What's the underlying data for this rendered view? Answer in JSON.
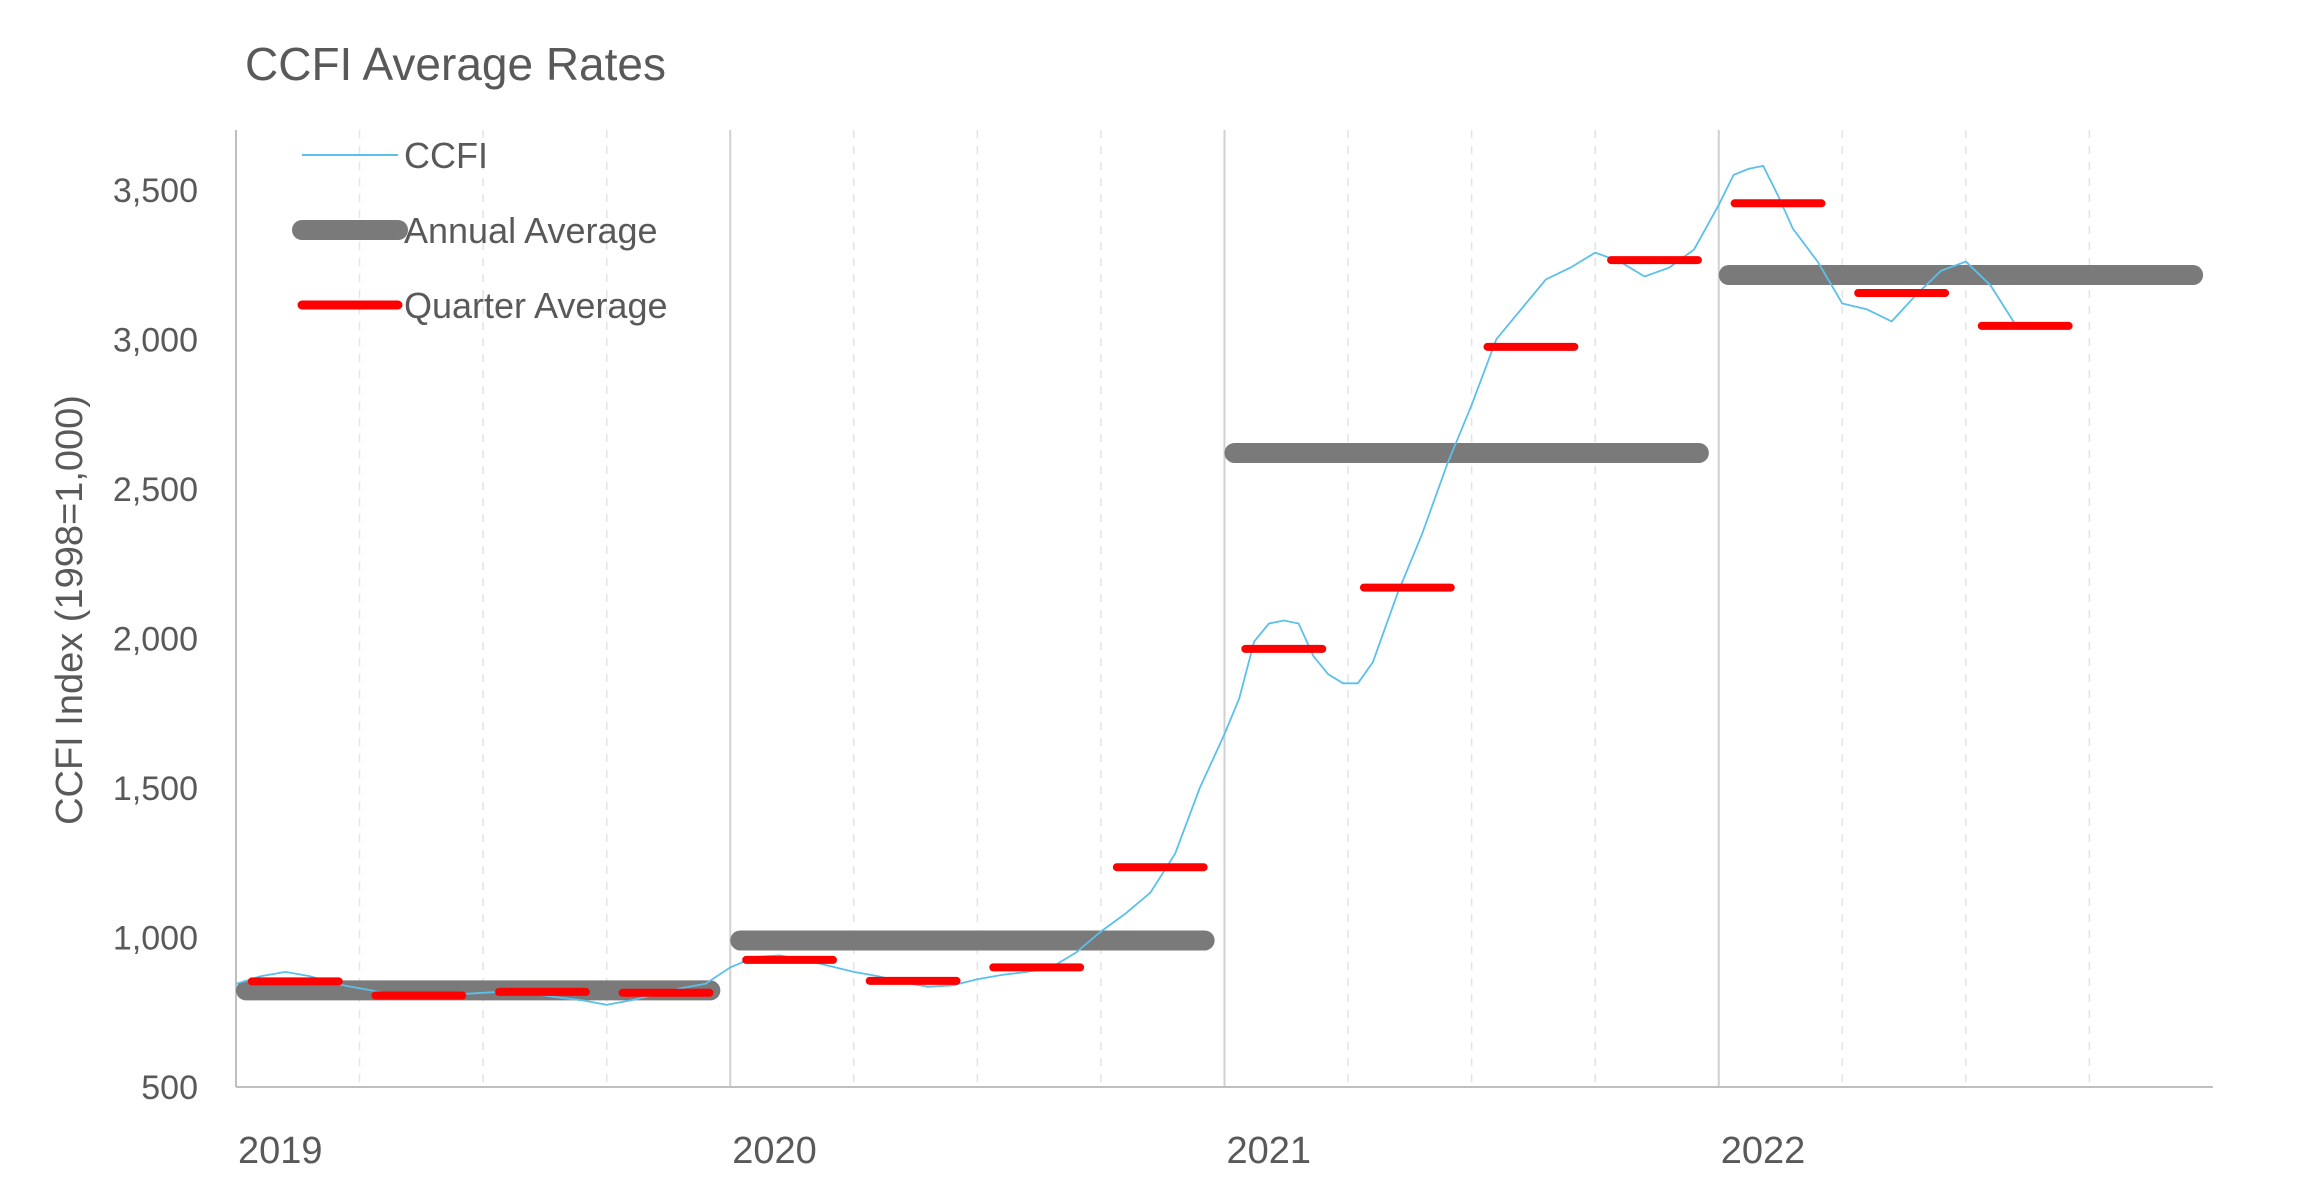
{
  "chart_data": {
    "type": "line",
    "title": "CCFI Average Rates",
    "xlabel": "",
    "ylabel": "CCFI Index (1998=1,000)",
    "ylim": [
      500,
      3700
    ],
    "xlim": [
      2019,
      2023
    ],
    "y_ticks": [
      500,
      1000,
      1500,
      2000,
      2500,
      3000,
      3500
    ],
    "y_tick_labels": [
      "500",
      "1,000",
      "1,500",
      "2,000",
      "2,500",
      "3,000",
      "3,500"
    ],
    "x_ticks": [
      2019,
      2020,
      2021,
      2022
    ],
    "x_tick_labels": [
      "2019",
      "2020",
      "2021",
      "2022"
    ],
    "grid": "vertical",
    "legend_position": "top-left",
    "series": [
      {
        "name": "CCFI",
        "style": "line",
        "color": "#5bc0eb",
        "x": [
          2019.0,
          2019.05,
          2019.1,
          2019.15,
          2019.2,
          2019.25,
          2019.3,
          2019.35,
          2019.4,
          2019.45,
          2019.5,
          2019.55,
          2019.6,
          2019.65,
          2019.7,
          2019.75,
          2019.8,
          2019.85,
          2019.9,
          2019.95,
          2020.0,
          2020.05,
          2020.1,
          2020.15,
          2020.2,
          2020.25,
          2020.3,
          2020.35,
          2020.4,
          2020.45,
          2020.5,
          2020.55,
          2020.6,
          2020.65,
          2020.7,
          2020.75,
          2020.8,
          2020.85,
          2020.9,
          2020.95,
          2021.0,
          2021.03,
          2021.06,
          2021.09,
          2021.12,
          2021.15,
          2021.18,
          2021.21,
          2021.24,
          2021.27,
          2021.3,
          2021.35,
          2021.4,
          2021.45,
          2021.5,
          2021.55,
          2021.6,
          2021.65,
          2021.7,
          2021.75,
          2021.8,
          2021.85,
          2021.9,
          2021.95,
          2022.0,
          2022.03,
          2022.06,
          2022.09,
          2022.12,
          2022.15,
          2022.2,
          2022.25,
          2022.3,
          2022.35,
          2022.4,
          2022.45,
          2022.5,
          2022.55,
          2022.6
        ],
        "y": [
          845,
          870,
          885,
          870,
          845,
          830,
          815,
          800,
          800,
          810,
          815,
          820,
          812,
          800,
          790,
          775,
          790,
          810,
          830,
          845,
          900,
          935,
          940,
          925,
          905,
          885,
          870,
          850,
          835,
          840,
          860,
          875,
          885,
          900,
          950,
          1020,
          1080,
          1150,
          1280,
          1500,
          1680,
          1800,
          1990,
          2050,
          2060,
          2050,
          1940,
          1880,
          1850,
          1850,
          1920,
          2150,
          2350,
          2580,
          2780,
          3000,
          3100,
          3200,
          3240,
          3290,
          3260,
          3210,
          3240,
          3300,
          3450,
          3550,
          3570,
          3580,
          3480,
          3370,
          3260,
          3120,
          3100,
          3060,
          3150,
          3230,
          3260,
          3180,
          3050
        ]
      },
      {
        "name": "Annual Average",
        "style": "step",
        "color": "#7a7a7a",
        "segments": [
          {
            "x": [
              2019.0,
              2019.98
            ],
            "y": 823
          },
          {
            "x": [
              2020.0,
              2020.98
            ],
            "y": 990
          },
          {
            "x": [
              2021.0,
              2021.98
            ],
            "y": 2620
          },
          {
            "x": [
              2022.0,
              2022.98
            ],
            "y": 3215
          }
        ]
      },
      {
        "name": "Quarter Average",
        "style": "step",
        "color": "#ff0000",
        "segments": [
          {
            "x": [
              2019.02,
              2019.22
            ],
            "y": 853
          },
          {
            "x": [
              2019.27,
              2019.47
            ],
            "y": 806
          },
          {
            "x": [
              2019.52,
              2019.72
            ],
            "y": 818
          },
          {
            "x": [
              2019.77,
              2019.97
            ],
            "y": 815
          },
          {
            "x": [
              2020.02,
              2020.22
            ],
            "y": 925
          },
          {
            "x": [
              2020.27,
              2020.47
            ],
            "y": 855
          },
          {
            "x": [
              2020.52,
              2020.72
            ],
            "y": 900
          },
          {
            "x": [
              2020.77,
              2020.97
            ],
            "y": 1235
          },
          {
            "x": [
              2021.03,
              2021.21
            ],
            "y": 1965
          },
          {
            "x": [
              2021.27,
              2021.47
            ],
            "y": 2170
          },
          {
            "x": [
              2021.52,
              2021.72
            ],
            "y": 2975
          },
          {
            "x": [
              2021.77,
              2021.97
            ],
            "y": 3265
          },
          {
            "x": [
              2022.02,
              2022.22
            ],
            "y": 3455
          },
          {
            "x": [
              2022.27,
              2022.47
            ],
            "y": 3155
          },
          {
            "x": [
              2022.52,
              2022.72
            ],
            "y": 3045
          }
        ]
      }
    ]
  }
}
